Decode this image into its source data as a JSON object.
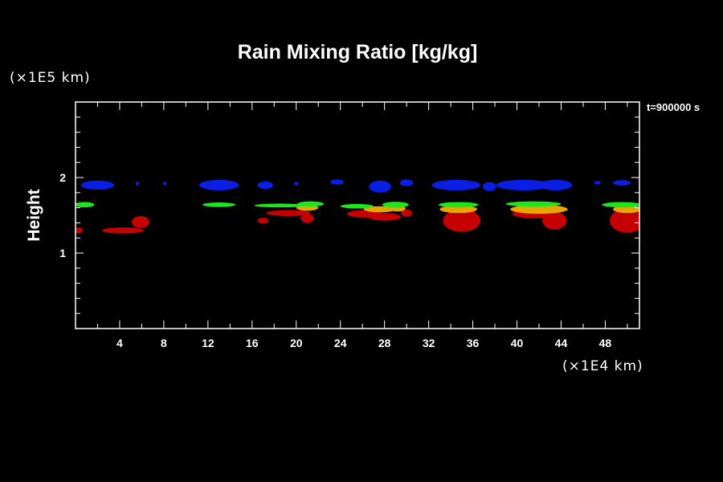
{
  "chart_data": {
    "type": "heatmap",
    "title": "Rain Mixing Ratio [kg/kg]",
    "ylabel": "Height",
    "xunit": "(×1E4 km)",
    "yunit": "(×1E5 km)",
    "time_label": "t=900000 s",
    "xlim": [
      0,
      51.1
    ],
    "ylim": [
      0,
      3.0
    ],
    "xticks": [
      "4",
      "8",
      "12",
      "16",
      "20",
      "24",
      "28",
      "32",
      "36",
      "40",
      "44",
      "48"
    ],
    "xtick_values": [
      4,
      8,
      12,
      16,
      20,
      24,
      28,
      32,
      36,
      40,
      44,
      48
    ],
    "yticks": [
      "1",
      "2"
    ],
    "ytick_values": [
      1,
      2
    ],
    "colors": {
      "blue": "#0a1ee6",
      "green": "#1ee61e",
      "orange": "#e6a800",
      "red": "#c40000"
    },
    "features": [
      {
        "c": "red",
        "cx": 0.3,
        "cy": 1.3,
        "rx": 0.35,
        "ry": 0.04
      },
      {
        "c": "red",
        "cx": 4.3,
        "cy": 1.3,
        "rx": 1.9,
        "ry": 0.04
      },
      {
        "c": "red",
        "cx": 5.9,
        "cy": 1.41,
        "rx": 0.8,
        "ry": 0.08
      },
      {
        "c": "red",
        "cx": 17.0,
        "cy": 1.43,
        "rx": 0.5,
        "ry": 0.04
      },
      {
        "c": "red",
        "cx": 19.3,
        "cy": 1.53,
        "rx": 2.0,
        "ry": 0.04
      },
      {
        "c": "red",
        "cx": 21.0,
        "cy": 1.46,
        "rx": 0.6,
        "ry": 0.06
      },
      {
        "c": "red",
        "cx": 26.2,
        "cy": 1.52,
        "rx": 1.6,
        "ry": 0.05
      },
      {
        "c": "red",
        "cx": 28.0,
        "cy": 1.48,
        "rx": 1.5,
        "ry": 0.05
      },
      {
        "c": "red",
        "cx": 30.0,
        "cy": 1.53,
        "rx": 0.5,
        "ry": 0.05
      },
      {
        "c": "red",
        "cx": 35.0,
        "cy": 1.43,
        "rx": 1.7,
        "ry": 0.15
      },
      {
        "c": "red",
        "cx": 41.5,
        "cy": 1.52,
        "rx": 1.9,
        "ry": 0.06
      },
      {
        "c": "red",
        "cx": 43.4,
        "cy": 1.43,
        "rx": 1.1,
        "ry": 0.12
      },
      {
        "c": "red",
        "cx": 50.0,
        "cy": 1.43,
        "rx": 1.6,
        "ry": 0.16
      },
      {
        "c": "orange",
        "cx": 21.0,
        "cy": 1.6,
        "rx": 1.0,
        "ry": 0.04
      },
      {
        "c": "orange",
        "cx": 27.6,
        "cy": 1.58,
        "rx": 1.5,
        "ry": 0.04
      },
      {
        "c": "orange",
        "cx": 29.2,
        "cy": 1.59,
        "rx": 0.7,
        "ry": 0.04
      },
      {
        "c": "orange",
        "cx": 34.7,
        "cy": 1.58,
        "rx": 1.7,
        "ry": 0.05
      },
      {
        "c": "orange",
        "cx": 42.0,
        "cy": 1.58,
        "rx": 2.6,
        "ry": 0.06
      },
      {
        "c": "orange",
        "cx": 50.0,
        "cy": 1.58,
        "rx": 1.3,
        "ry": 0.05
      },
      {
        "c": "green",
        "cx": 0.8,
        "cy": 1.64,
        "rx": 0.9,
        "ry": 0.035
      },
      {
        "c": "green",
        "cx": 13.0,
        "cy": 1.64,
        "rx": 1.5,
        "ry": 0.03
      },
      {
        "c": "green",
        "cx": 18.5,
        "cy": 1.63,
        "rx": 2.3,
        "ry": 0.025
      },
      {
        "c": "green",
        "cx": 21.3,
        "cy": 1.65,
        "rx": 1.2,
        "ry": 0.035
      },
      {
        "c": "green",
        "cx": 25.5,
        "cy": 1.62,
        "rx": 1.5,
        "ry": 0.03
      },
      {
        "c": "green",
        "cx": 29.0,
        "cy": 1.64,
        "rx": 1.2,
        "ry": 0.04
      },
      {
        "c": "green",
        "cx": 34.7,
        "cy": 1.64,
        "rx": 1.8,
        "ry": 0.035
      },
      {
        "c": "green",
        "cx": 41.5,
        "cy": 1.65,
        "rx": 2.5,
        "ry": 0.035
      },
      {
        "c": "green",
        "cx": 49.5,
        "cy": 1.64,
        "rx": 1.8,
        "ry": 0.035
      },
      {
        "c": "blue",
        "cx": 2.0,
        "cy": 1.9,
        "rx": 1.5,
        "ry": 0.06
      },
      {
        "c": "blue",
        "cx": 5.6,
        "cy": 1.92,
        "rx": 0.15,
        "ry": 0.025
      },
      {
        "c": "blue",
        "cx": 8.1,
        "cy": 1.92,
        "rx": 0.15,
        "ry": 0.025
      },
      {
        "c": "blue",
        "cx": 13.0,
        "cy": 1.9,
        "rx": 1.8,
        "ry": 0.07
      },
      {
        "c": "blue",
        "cx": 17.2,
        "cy": 1.9,
        "rx": 0.7,
        "ry": 0.05
      },
      {
        "c": "blue",
        "cx": 20.0,
        "cy": 1.92,
        "rx": 0.2,
        "ry": 0.025
      },
      {
        "c": "blue",
        "cx": 23.7,
        "cy": 1.94,
        "rx": 0.6,
        "ry": 0.035
      },
      {
        "c": "blue",
        "cx": 27.6,
        "cy": 1.88,
        "rx": 1.0,
        "ry": 0.08
      },
      {
        "c": "blue",
        "cx": 30.0,
        "cy": 1.93,
        "rx": 0.6,
        "ry": 0.045
      },
      {
        "c": "blue",
        "cx": 34.5,
        "cy": 1.9,
        "rx": 2.2,
        "ry": 0.07
      },
      {
        "c": "blue",
        "cx": 37.5,
        "cy": 1.88,
        "rx": 0.6,
        "ry": 0.06
      },
      {
        "c": "blue",
        "cx": 40.6,
        "cy": 1.9,
        "rx": 2.5,
        "ry": 0.07
      },
      {
        "c": "blue",
        "cx": 43.5,
        "cy": 1.9,
        "rx": 1.5,
        "ry": 0.07
      },
      {
        "c": "blue",
        "cx": 47.3,
        "cy": 1.93,
        "rx": 0.3,
        "ry": 0.025
      },
      {
        "c": "blue",
        "cx": 49.5,
        "cy": 1.93,
        "rx": 0.8,
        "ry": 0.035
      }
    ]
  }
}
